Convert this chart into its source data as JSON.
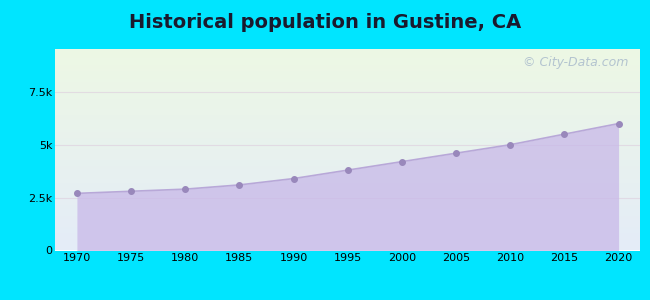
{
  "title": "Historical population in Gustine, CA",
  "title_fontsize": 14,
  "title_fontweight": "bold",
  "years": [
    1970,
    1975,
    1980,
    1985,
    1990,
    1995,
    2000,
    2005,
    2010,
    2015,
    2020
  ],
  "population": [
    2700,
    2800,
    2900,
    3100,
    3400,
    3800,
    4200,
    4600,
    5000,
    5500,
    6000
  ],
  "line_color": "#b8a8d8",
  "fill_color": "#c8b8e8",
  "fill_alpha": 0.75,
  "marker_color": "#9988bb",
  "marker_size": 4,
  "outer_bg_color": "#00e5ff",
  "plot_bg_top": "#edf8e4",
  "plot_bg_bottom": "#e4ecf8",
  "ylim": [
    0,
    9500
  ],
  "xlim": [
    1968,
    2022
  ],
  "yticks": [
    0,
    2500,
    5000,
    7500
  ],
  "ytick_labels": [
    "0",
    "2.5k",
    "5k",
    "7.5k"
  ],
  "xticks": [
    1970,
    1975,
    1980,
    1985,
    1990,
    1995,
    2000,
    2005,
    2010,
    2015,
    2020
  ],
  "grid_color": "#ddccdd",
  "grid_alpha": 0.6,
  "watermark_text": "© City-Data.com",
  "watermark_color": "#aabbcc",
  "watermark_fontsize": 9,
  "tick_fontsize": 8
}
